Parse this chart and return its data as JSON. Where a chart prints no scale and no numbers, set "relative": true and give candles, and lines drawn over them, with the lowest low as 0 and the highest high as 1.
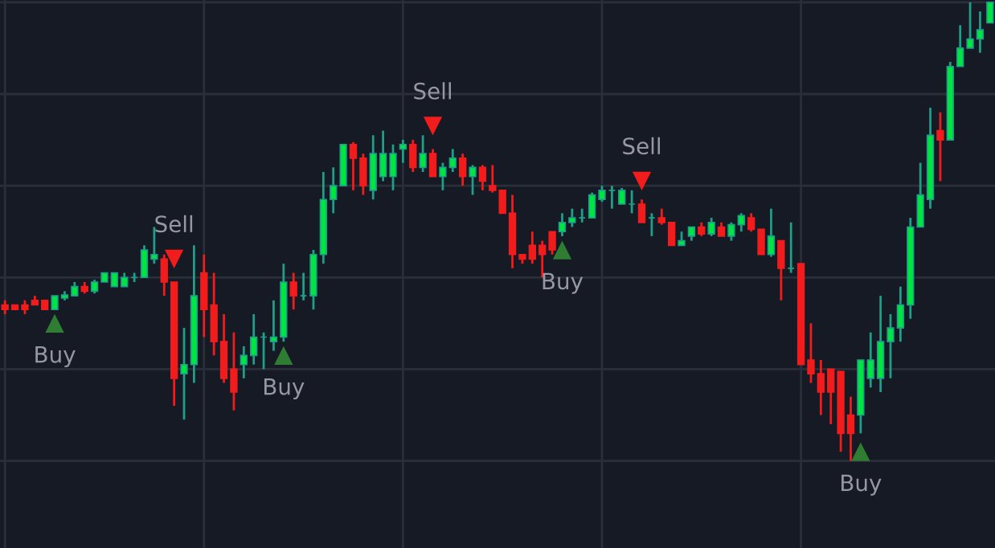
{
  "chart_data": {
    "type": "candlestick",
    "relative": true,
    "grid": true,
    "categories": [
      null,
      null,
      null,
      null,
      null,
      null,
      null,
      null,
      null,
      null,
      null,
      null,
      null,
      null,
      null,
      null,
      null,
      null,
      null,
      null,
      null,
      null,
      null,
      null,
      null,
      null,
      null,
      null,
      null,
      null,
      null,
      null,
      null,
      null,
      null,
      null,
      null,
      null,
      null,
      null,
      null,
      null,
      null,
      null,
      null,
      null,
      null,
      null,
      null,
      null,
      null,
      null,
      null,
      null,
      null,
      null,
      null,
      null,
      null,
      null,
      null,
      null,
      null,
      null,
      null,
      null,
      null,
      null,
      null,
      null,
      null,
      null,
      null,
      null,
      null,
      null,
      null,
      null,
      null,
      null,
      null,
      null,
      null,
      null,
      null,
      null,
      null,
      null,
      null,
      null,
      null,
      null,
      null,
      null,
      null,
      null,
      null,
      null,
      null,
      null
    ],
    "ohlc": [
      [
        0.34,
        0.35,
        0.32,
        0.33
      ],
      [
        0.34,
        0.34,
        0.33,
        0.33
      ],
      [
        0.34,
        0.35,
        0.32,
        0.33
      ],
      [
        0.35,
        0.36,
        0.34,
        0.34
      ],
      [
        0.35,
        0.35,
        0.33,
        0.33
      ],
      [
        0.33,
        0.36,
        0.33,
        0.36
      ],
      [
        0.355,
        0.37,
        0.35,
        0.362
      ],
      [
        0.36,
        0.39,
        0.36,
        0.38
      ],
      [
        0.38,
        0.39,
        0.365,
        0.37
      ],
      [
        0.37,
        0.395,
        0.365,
        0.39
      ],
      [
        0.39,
        0.41,
        0.39,
        0.41
      ],
      [
        0.38,
        0.41,
        0.38,
        0.41
      ],
      [
        0.38,
        0.41,
        0.38,
        0.4
      ],
      [
        0.4,
        0.41,
        0.39,
        0.4
      ],
      [
        0.4,
        0.47,
        0.4,
        0.46
      ],
      [
        0.44,
        0.51,
        0.43,
        0.45
      ],
      [
        0.44,
        0.45,
        0.36,
        0.39
      ],
      [
        0.39,
        0.39,
        0.12,
        0.18
      ],
      [
        0.19,
        0.29,
        0.09,
        0.21
      ],
      [
        0.21,
        0.47,
        0.17,
        0.36
      ],
      [
        0.41,
        0.45,
        0.27,
        0.33
      ],
      [
        0.34,
        0.41,
        0.23,
        0.26
      ],
      [
        0.26,
        0.32,
        0.17,
        0.18
      ],
      [
        0.2,
        0.28,
        0.11,
        0.15
      ],
      [
        0.21,
        0.25,
        0.18,
        0.23
      ],
      [
        0.23,
        0.32,
        0.21,
        0.27
      ],
      [
        0.27,
        0.28,
        0.2,
        0.27
      ],
      [
        0.26,
        0.35,
        0.24,
        0.27
      ],
      [
        0.27,
        0.43,
        0.26,
        0.39
      ],
      [
        0.39,
        0.41,
        0.33,
        0.36
      ],
      [
        0.36,
        0.41,
        0.35,
        0.36
      ],
      [
        0.36,
        0.46,
        0.33,
        0.45
      ],
      [
        0.45,
        0.63,
        0.43,
        0.57
      ],
      [
        0.57,
        0.64,
        0.54,
        0.6
      ],
      [
        0.6,
        0.69,
        0.6,
        0.69
      ],
      [
        0.69,
        0.695,
        0.59,
        0.66
      ],
      [
        0.66,
        0.67,
        0.58,
        0.6
      ],
      [
        0.59,
        0.71,
        0.57,
        0.67
      ],
      [
        0.62,
        0.72,
        0.61,
        0.67
      ],
      [
        0.62,
        0.69,
        0.59,
        0.67
      ],
      [
        0.68,
        0.7,
        0.65,
        0.69
      ],
      [
        0.69,
        0.7,
        0.63,
        0.64
      ],
      [
        0.64,
        0.71,
        0.63,
        0.67
      ],
      [
        0.67,
        0.68,
        0.62,
        0.62
      ],
      [
        0.62,
        0.65,
        0.59,
        0.64
      ],
      [
        0.64,
        0.68,
        0.63,
        0.66
      ],
      [
        0.66,
        0.67,
        0.6,
        0.62
      ],
      [
        0.62,
        0.645,
        0.58,
        0.64
      ],
      [
        0.64,
        0.645,
        0.59,
        0.61
      ],
      [
        0.6,
        0.645,
        0.585,
        0.59
      ],
      [
        0.59,
        0.59,
        0.54,
        0.54
      ],
      [
        0.54,
        0.58,
        0.42,
        0.45
      ],
      [
        0.45,
        0.45,
        0.43,
        0.44
      ],
      [
        0.47,
        0.5,
        0.43,
        0.44
      ],
      [
        0.47,
        0.48,
        0.4,
        0.45
      ],
      [
        0.5,
        0.5,
        0.45,
        0.46
      ],
      [
        0.5,
        0.54,
        0.49,
        0.52
      ],
      [
        0.52,
        0.55,
        0.51,
        0.53
      ],
      [
        0.53,
        0.55,
        0.52,
        0.53
      ],
      [
        0.53,
        0.585,
        0.53,
        0.58
      ],
      [
        0.57,
        0.6,
        0.565,
        0.59
      ],
      [
        0.59,
        0.6,
        0.55,
        0.59
      ],
      [
        0.56,
        0.595,
        0.56,
        0.59
      ],
      [
        0.56,
        0.59,
        0.54,
        0.56
      ],
      [
        0.56,
        0.57,
        0.52,
        0.52
      ],
      [
        0.53,
        0.54,
        0.49,
        0.53
      ],
      [
        0.53,
        0.55,
        0.515,
        0.52
      ],
      [
        0.52,
        0.52,
        0.47,
        0.47
      ],
      [
        0.47,
        0.5,
        0.47,
        0.48
      ],
      [
        0.49,
        0.51,
        0.48,
        0.51
      ],
      [
        0.51,
        0.52,
        0.49,
        0.495
      ],
      [
        0.495,
        0.53,
        0.49,
        0.52
      ],
      [
        0.51,
        0.52,
        0.49,
        0.49
      ],
      [
        0.49,
        0.52,
        0.48,
        0.515
      ],
      [
        0.515,
        0.54,
        0.5,
        0.535
      ],
      [
        0.53,
        0.54,
        0.5,
        0.505
      ],
      [
        0.505,
        0.505,
        0.45,
        0.45
      ],
      [
        0.45,
        0.55,
        0.445,
        0.49
      ],
      [
        0.48,
        0.48,
        0.35,
        0.42
      ],
      [
        0.42,
        0.52,
        0.41,
        0.42
      ],
      [
        0.43,
        0.43,
        0.21,
        0.21
      ],
      [
        0.22,
        0.3,
        0.17,
        0.19
      ],
      [
        0.19,
        0.22,
        0.1,
        0.15
      ],
      [
        0.2,
        0.2,
        0.08,
        0.15
      ],
      [
        0.195,
        0.195,
        0.02,
        0.06
      ],
      [
        0.1,
        0.14,
        0,
        0.06
      ],
      [
        0.1,
        0.22,
        0.06,
        0.22
      ],
      [
        0.18,
        0.28,
        0.16,
        0.22
      ],
      [
        0.18,
        0.36,
        0.15,
        0.26
      ],
      [
        0.26,
        0.32,
        0.18,
        0.29
      ],
      [
        0.29,
        0.38,
        0.26,
        0.34
      ],
      [
        0.34,
        0.53,
        0.31,
        0.51
      ],
      [
        0.51,
        0.65,
        0.51,
        0.58
      ],
      [
        0.57,
        0.77,
        0.55,
        0.71
      ],
      [
        0.72,
        0.76,
        0.61,
        0.7
      ],
      [
        0.7,
        0.87,
        0.7,
        0.86
      ],
      [
        0.86,
        0.95,
        0.86,
        0.9
      ],
      [
        0.9,
        1.0,
        0.9,
        0.92
      ],
      [
        0.92,
        0.98,
        0.89,
        0.94
      ],
      [
        0.955,
        1.0,
        0.955,
        1.0
      ]
    ],
    "series": [
      {
        "type": "scatter",
        "marker": "triangle",
        "color": "#2e7d32",
        "values": [
          null,
          null,
          null,
          null,
          null,
          0.3,
          null,
          null,
          null,
          null,
          null,
          null,
          null,
          null,
          null,
          null,
          null,
          null,
          null,
          null,
          null,
          null,
          null,
          null,
          null,
          null,
          null,
          null,
          0.23,
          null,
          null,
          null,
          null,
          null,
          null,
          null,
          null,
          null,
          null,
          null,
          null,
          null,
          null,
          null,
          null,
          null,
          null,
          null,
          null,
          null,
          null,
          null,
          null,
          null,
          null,
          null,
          0.46,
          null,
          null,
          null,
          null,
          null,
          null,
          null,
          null,
          null,
          null,
          null,
          null,
          null,
          null,
          null,
          null,
          null,
          null,
          null,
          null,
          null,
          null,
          null,
          null,
          null,
          null,
          null,
          null,
          null,
          0.02,
          null,
          null,
          null,
          null,
          null,
          null,
          null,
          null,
          null,
          null,
          null,
          null,
          null
        ]
      },
      {
        "type": "scatter",
        "marker": "triangle_down",
        "color": "#f21c1c",
        "values": [
          null,
          null,
          null,
          null,
          null,
          null,
          null,
          null,
          null,
          null,
          null,
          null,
          null,
          null,
          null,
          null,
          null,
          0.44,
          null,
          null,
          null,
          null,
          null,
          null,
          null,
          null,
          null,
          null,
          null,
          null,
          null,
          null,
          null,
          null,
          null,
          null,
          null,
          null,
          null,
          null,
          null,
          null,
          null,
          0.73,
          null,
          null,
          null,
          null,
          null,
          null,
          null,
          null,
          null,
          null,
          null,
          null,
          null,
          null,
          null,
          null,
          null,
          null,
          null,
          null,
          0.61,
          null,
          null,
          null,
          null,
          null,
          null,
          null,
          null,
          null,
          null,
          null,
          null,
          null,
          null,
          null,
          null,
          null,
          null,
          null,
          null,
          null,
          null,
          null,
          null,
          null,
          null,
          null,
          null,
          null,
          null,
          null,
          null,
          null,
          null,
          null
        ]
      }
    ],
    "annotations": [
      "Buy",
      "Sell",
      "Buy",
      "Sell",
      "Buy",
      "Sell",
      "Buy"
    ]
  }
}
